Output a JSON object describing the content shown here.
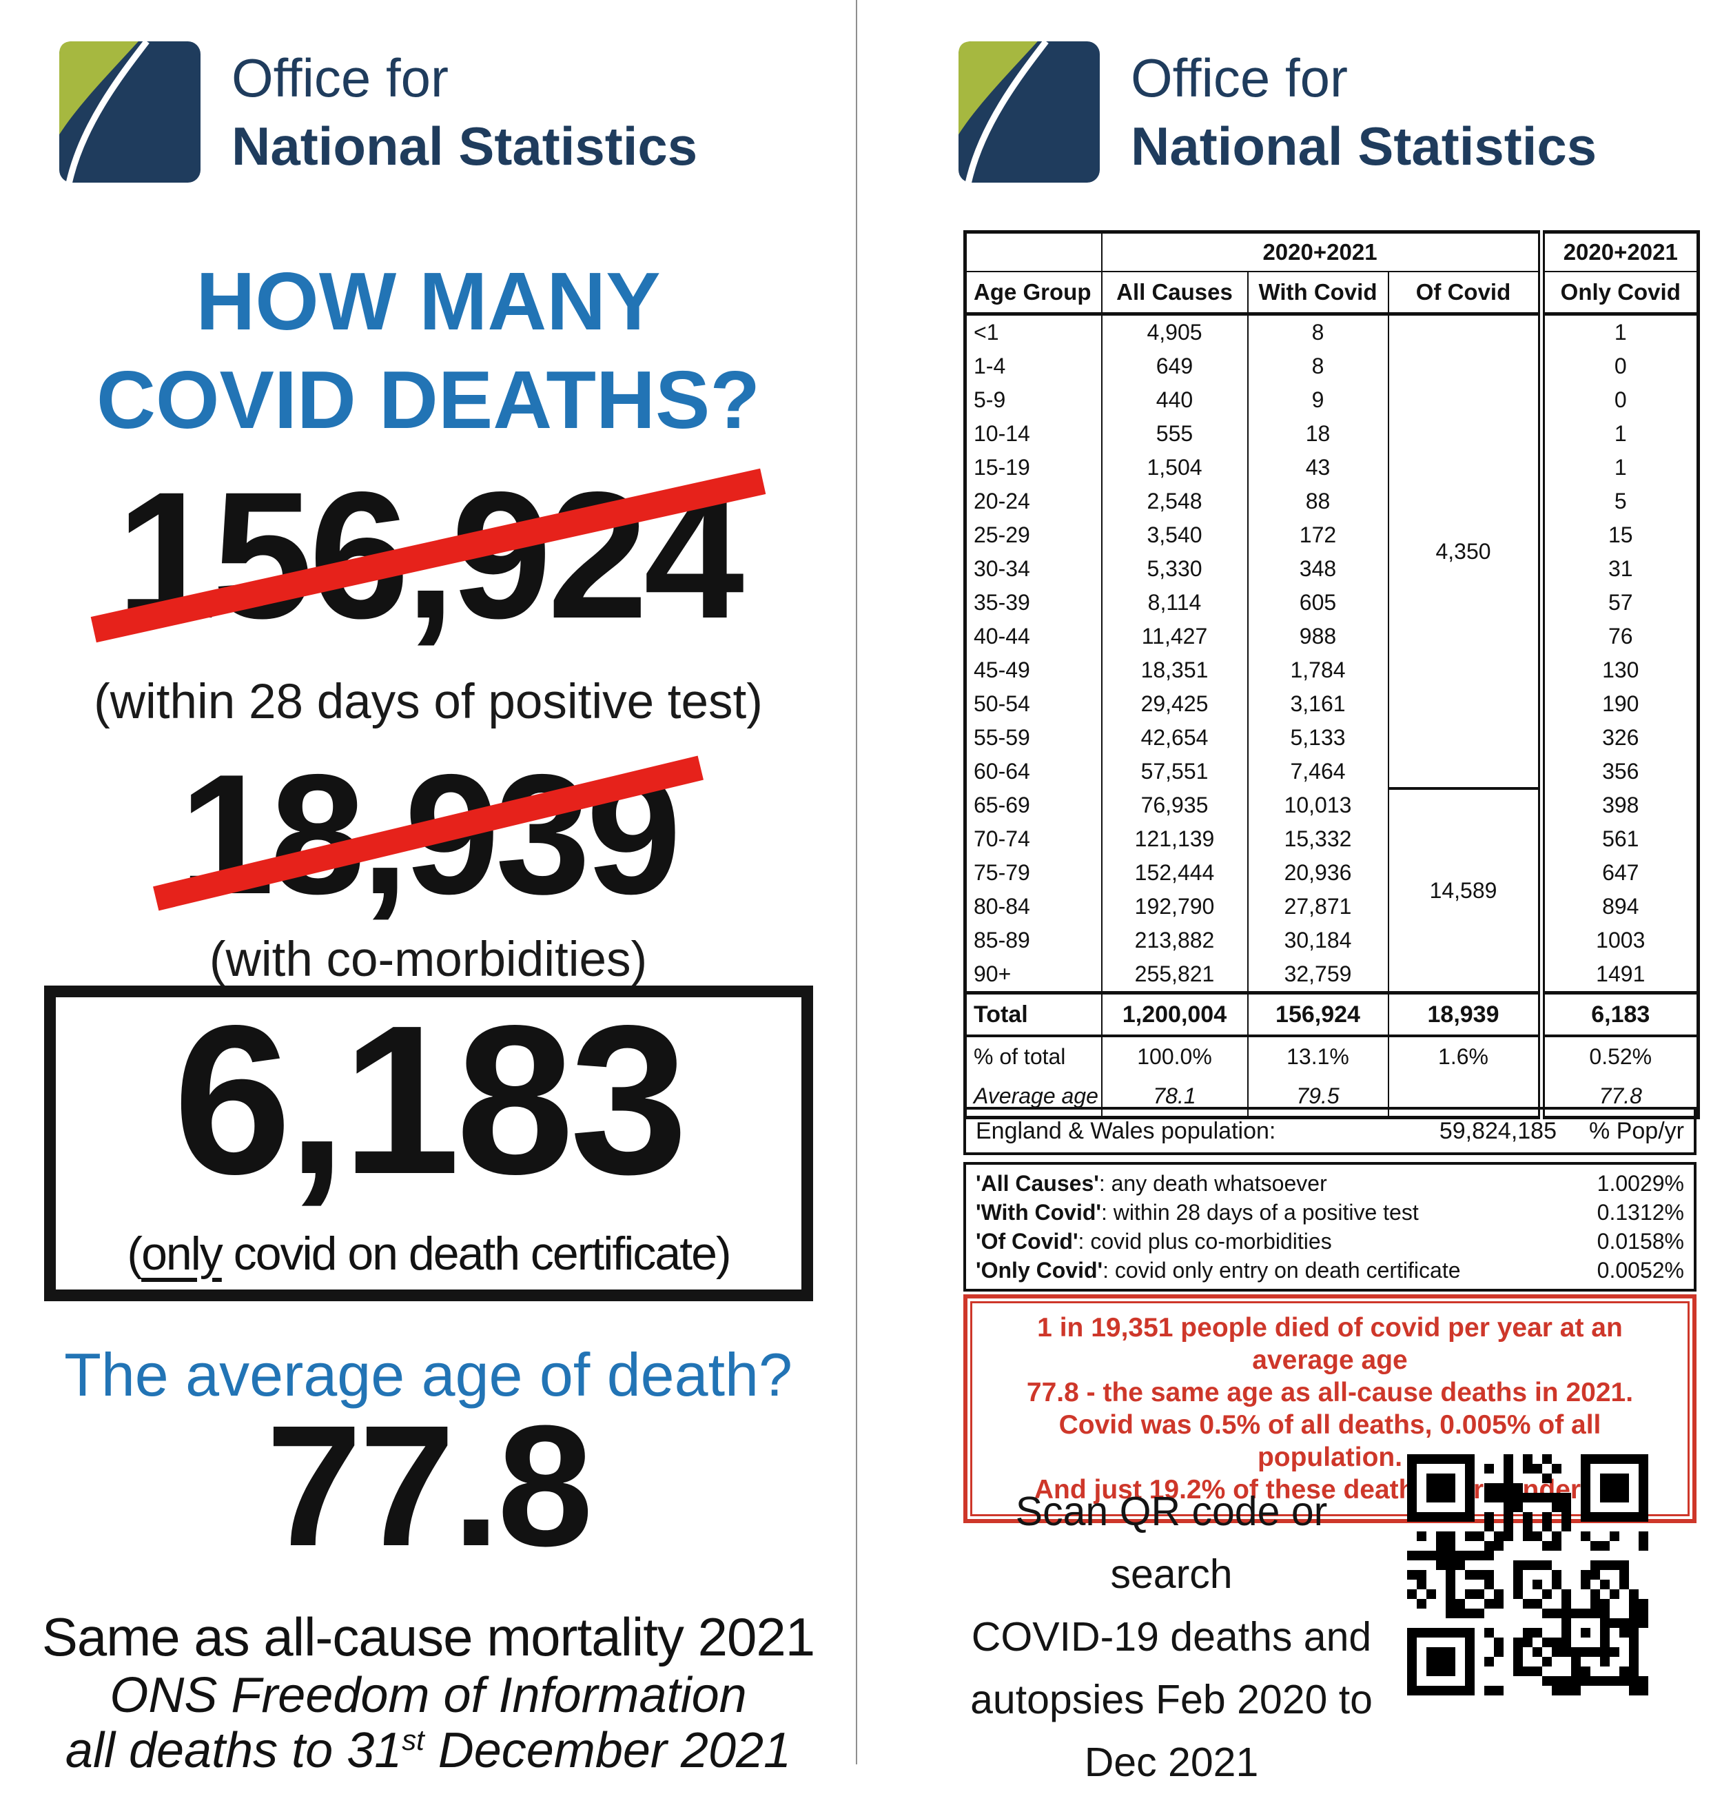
{
  "logo": {
    "line1": "Office for",
    "line2": "National Statistics"
  },
  "left": {
    "headline": [
      "HOW MANY",
      "COVID DEATHS?"
    ],
    "stat1_value": "156,924",
    "stat1_caption": "(within 28 days of positive test)",
    "stat2_value": "18,939",
    "stat2_caption": "(with co-morbidities)",
    "stat3_value": "6,183",
    "stat3_caption_open": "(",
    "stat3_caption_underline": "only",
    "stat3_caption_rest": " covid on death certificate)",
    "avg_question": "The average age of death?",
    "avg_value": "77.8",
    "avg_note": "Same as all-cause mortality 2021",
    "source_line1": "ONS Freedom of Information",
    "source_line2_pre": "all deaths to 31",
    "source_line2_sup": "st",
    "source_line2_post": " December 2021"
  },
  "right": {
    "table": {
      "year_label": "2020+2021",
      "columns": [
        "Age Group",
        "All Causes",
        "With Covid",
        "Of Covid",
        "Only Covid"
      ],
      "rows": [
        [
          "<1",
          "4,905",
          "8",
          "1"
        ],
        [
          "1-4",
          "649",
          "8",
          "0"
        ],
        [
          "5-9",
          "440",
          "9",
          "0"
        ],
        [
          "10-14",
          "555",
          "18",
          "1"
        ],
        [
          "15-19",
          "1,504",
          "43",
          "1"
        ],
        [
          "20-24",
          "2,548",
          "88",
          "5"
        ],
        [
          "25-29",
          "3,540",
          "172",
          "15"
        ],
        [
          "30-34",
          "5,330",
          "348",
          "31"
        ],
        [
          "35-39",
          "8,114",
          "605",
          "57"
        ],
        [
          "40-44",
          "11,427",
          "988",
          "76"
        ],
        [
          "45-49",
          "18,351",
          "1,784",
          "130"
        ],
        [
          "50-54",
          "29,425",
          "3,161",
          "190"
        ],
        [
          "55-59",
          "42,654",
          "5,133",
          "326"
        ],
        [
          "60-64",
          "57,551",
          "7,464",
          "356"
        ],
        [
          "65-69",
          "76,935",
          "10,013",
          "398"
        ],
        [
          "70-74",
          "121,139",
          "15,332",
          "561"
        ],
        [
          "75-79",
          "152,444",
          "20,936",
          "647"
        ],
        [
          "80-84",
          "192,790",
          "27,871",
          "894"
        ],
        [
          "85-89",
          "213,882",
          "30,184",
          "1003"
        ],
        [
          "90+",
          "255,821",
          "32,759",
          "1491"
        ]
      ],
      "of_covid_groups": [
        {
          "value": "4,350",
          "rows": 14
        },
        {
          "value": "14,589",
          "rows": 6
        }
      ],
      "total_label": "Total",
      "total": [
        "1,200,004",
        "156,924",
        "18,939",
        "6,183"
      ],
      "pct_label": "% of total",
      "pct": [
        "100.0%",
        "13.1%",
        "1.6%",
        "0.52%"
      ],
      "avg_label": "Average age",
      "avg": [
        "78.1",
        "79.5",
        "",
        "77.8"
      ]
    },
    "population": {
      "label": "England & Wales population:",
      "value": "59,824,185",
      "unit": "% Pop/yr"
    },
    "definitions": [
      {
        "term": "'All Causes'",
        "desc": ": any death whatsoever",
        "pct": "1.0029%"
      },
      {
        "term": "'With Covid'",
        "desc": ": within 28 days of a positive test",
        "pct": "0.1312%"
      },
      {
        "term": "'Of Covid'",
        "desc": ": covid plus co-morbidities",
        "pct": "0.0158%"
      },
      {
        "term": "'Only Covid'",
        "desc": ": covid only entry on death certificate",
        "pct": "0.0052%"
      }
    ],
    "redbox": [
      "1 in 19,351 people died of covid per year at an average age",
      "77.8 - the same age as all-cause deaths in 2021.",
      "Covid was 0.5% of all deaths, 0.005% of all population.",
      "And just 19.2% of these deaths were under 65."
    ],
    "scan": [
      "Scan QR code or search",
      "COVID-19 deaths and",
      "autopsies Feb 2020 to",
      "Dec 2021"
    ]
  },
  "colors": {
    "accent_blue": "#2274b5",
    "strike_red": "#e6221b",
    "box_red": "#ce372a",
    "logo_navy": "#1f3c5d",
    "logo_green": "#a6b840"
  }
}
